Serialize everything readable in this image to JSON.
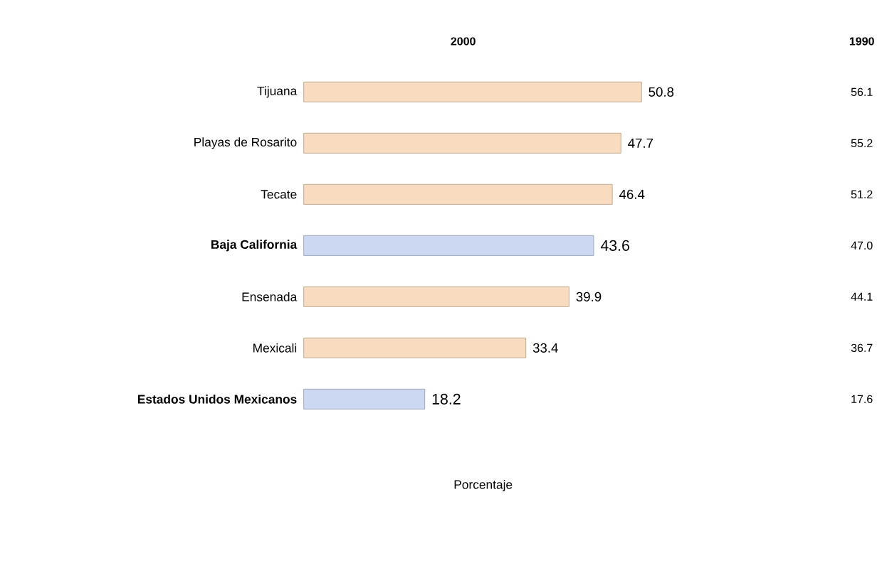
{
  "chart_data": {
    "type": "bar",
    "orientation": "horizontal",
    "xlabel": "Porcentaje",
    "categories": [
      "Tijuana",
      "Playas de Rosarito",
      "Tecate",
      "Baja California",
      "Ensenada",
      "Mexicali",
      "Estados Unidos Mexicanos"
    ],
    "series": [
      {
        "name": "2000",
        "colors": [
          "#f9dcbf",
          "#f9dcbf",
          "#f9dcbf",
          "#ccd8f2",
          "#f9dcbf",
          "#f9dcbf",
          "#ccd8f2"
        ],
        "values": [
          50.8,
          47.7,
          46.4,
          43.6,
          39.9,
          33.4,
          18.2
        ]
      }
    ],
    "data_labels": true,
    "annotations": [
      "1990",
      "56.1",
      "55.2",
      "51.2",
      "47.0",
      "44.1",
      "36.7",
      "17.6"
    ]
  }
}
